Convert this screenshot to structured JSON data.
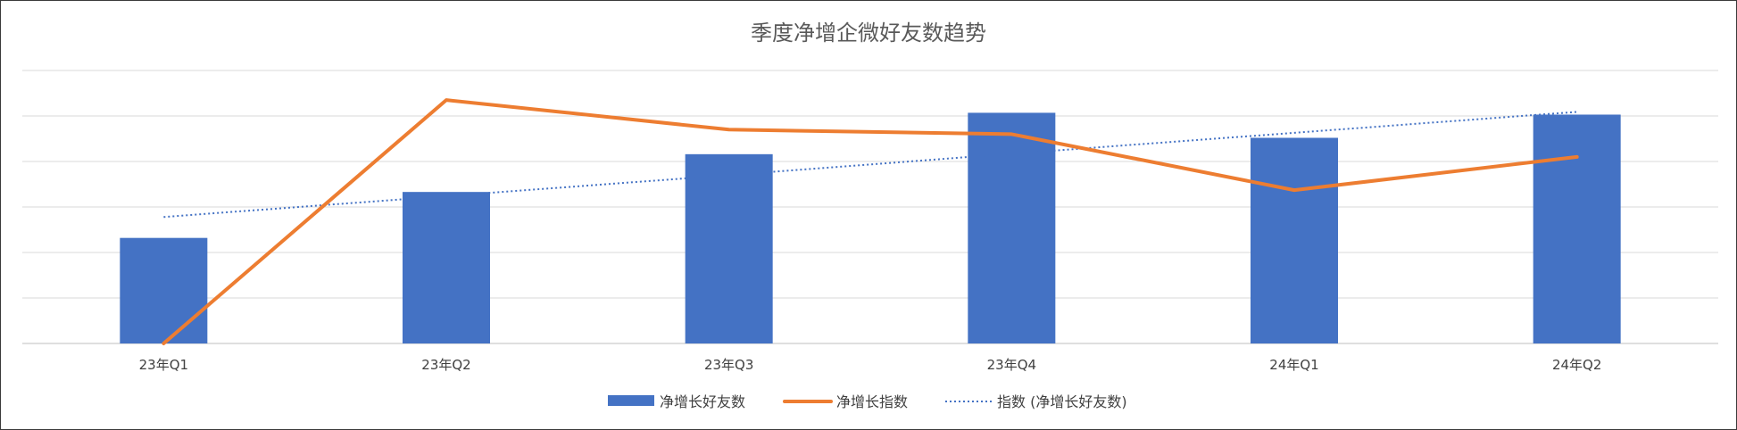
{
  "chart_data": {
    "type": "bar",
    "title": "季度净增企微好友数趋势",
    "categories": [
      "23年Q1",
      "23年Q2",
      "23年Q3",
      "23年Q4",
      "24年Q1",
      "24年Q2"
    ],
    "ylim": [
      0,
      6
    ],
    "grid": true,
    "legend": "bottom",
    "series": [
      {
        "name": "净增长好友数",
        "type": "bar",
        "axis": "primary",
        "color": "#4472C4",
        "values": [
          2.32,
          3.33,
          4.16,
          5.07,
          4.52,
          5.03
        ]
      },
      {
        "name": "净增长指数",
        "type": "line",
        "axis": "secondary",
        "color": "#ED7D31",
        "values": [
          0.0,
          5.35,
          4.7,
          4.6,
          3.37,
          4.1
        ]
      },
      {
        "name": "指数 (净增长好友数)",
        "type": "trendline",
        "axis": "primary",
        "color": "#4472C4",
        "values": [
          2.78,
          3.24,
          3.7,
          4.17,
          4.63,
          5.09
        ]
      }
    ]
  }
}
